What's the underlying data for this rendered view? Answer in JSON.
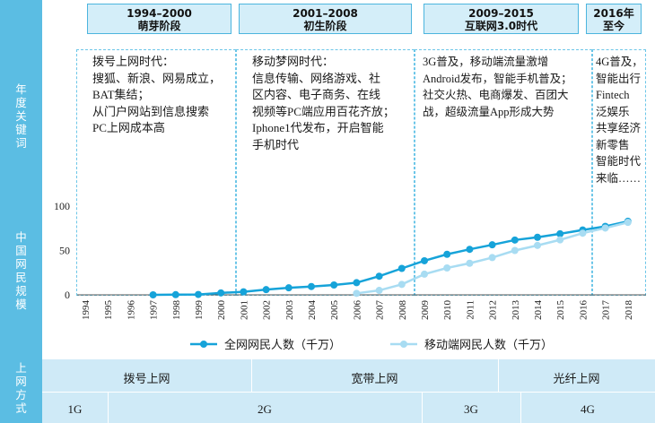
{
  "stages": [
    {
      "years": "1994–2000",
      "name": "萌芽阶段"
    },
    {
      "years": "2001–2008",
      "name": "初生阶段"
    },
    {
      "years": "2009–2015",
      "name": "互联网3.0时代"
    },
    {
      "years": "2016年",
      "name": "至今"
    }
  ],
  "row_labels": {
    "keywords": "年\n度\n关\n键\n词",
    "users": "中\n国\n网\n民\n规\n模",
    "access": "上\n网\n方\n式"
  },
  "keywords": [
    "拨号上网时代：\n搜狐、新浪、网易成立，\nBAT集结；\n从门户网站到信息搜索\nPC上网成本高",
    "移动梦网时代：\n信息传输、网络游戏、社\n区内容、电子商务、在线\n视频等PC端应用百花齐放；\nIphone1代发布，开启智能\n手机时代",
    "3G普及，移动端流量激增\nAndroid发布，智能手机普及；\n社交火热、电商爆发、百团大\n战，超级流量App形成大势",
    "4G普及，\n智能出行\nFintech\n泛娱乐\n共享经济\n新零售\n智能时代\n来临……"
  ],
  "access": {
    "network": [
      "拨号上网",
      "宽带上网",
      "光纤上网"
    ],
    "mobile": [
      "1G",
      "2G",
      "3G",
      "4G"
    ]
  },
  "chart_data": {
    "type": "line",
    "x": [
      "1994",
      "1995",
      "1996",
      "1997",
      "1998",
      "1999",
      "2000",
      "2001",
      "2002",
      "2003",
      "2004",
      "2005",
      "2006",
      "2007",
      "2008",
      "2009",
      "2010",
      "2011",
      "2012",
      "2013",
      "2014",
      "2015",
      "2016",
      "2017",
      "2018"
    ],
    "yticks": [
      0,
      50,
      100
    ],
    "ylim": [
      0,
      100
    ],
    "series": [
      {
        "name": "全网网民人数（千万）",
        "color": "#16a3d9",
        "values": [
          null,
          null,
          null,
          0,
          0.2,
          0.4,
          2.2,
          3.4,
          5.9,
          7.9,
          9.4,
          11.1,
          13.7,
          21,
          29.8,
          38.4,
          45.7,
          51.3,
          56.4,
          61.8,
          64.9,
          68.8,
          73.1,
          77.2,
          82.9
        ]
      },
      {
        "name": "移动端网民人数（千万）",
        "color": "#a8dcf2",
        "values": [
          null,
          null,
          null,
          null,
          null,
          null,
          null,
          null,
          null,
          null,
          null,
          null,
          1.7,
          5,
          11.8,
          23.3,
          30.3,
          35.6,
          42,
          50,
          55.7,
          62,
          69.5,
          75.3,
          81.7
        ]
      }
    ]
  }
}
